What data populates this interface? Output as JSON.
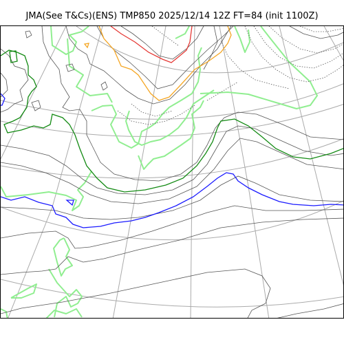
{
  "title": "JMA(See T&Cs)(ENS) TMP850 2025/12/14 12Z FT=84 (init 1100Z)",
  "colors": {
    "coastline": "#90ee90",
    "graticule": "#aaaaaa",
    "contour_minor": "#555555",
    "contour_warm": "#e53935",
    "contour_orange": "#f5a623",
    "contour_green": "#138a13",
    "contour_blue": "#1a1aff"
  }
}
